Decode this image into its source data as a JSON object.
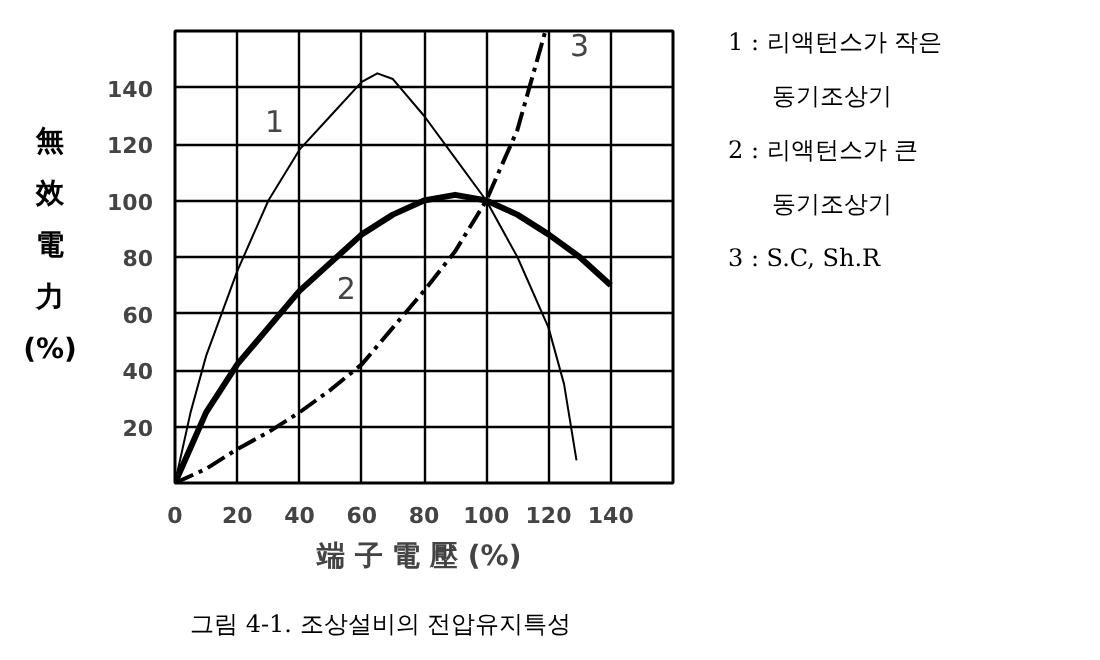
{
  "chart_data": {
    "type": "line",
    "xlabel": "端 子 電 壓  (%)",
    "ylabel": "無效電力(%)",
    "xlim": [
      0,
      160
    ],
    "ylim": [
      0,
      160
    ],
    "xticks": [
      0,
      20,
      40,
      60,
      80,
      100,
      120,
      140
    ],
    "yticks": [
      20,
      40,
      60,
      80,
      100,
      120,
      140
    ],
    "grid": true,
    "marker": "none",
    "series": [
      {
        "color": "#000000",
        "line_style": "solid",
        "x": [
          0,
          5,
          10,
          20,
          30,
          40,
          50,
          60,
          65,
          70,
          80,
          90,
          100,
          110,
          120,
          125,
          129
        ],
        "values": [
          0,
          25,
          45,
          75,
          100,
          118,
          130,
          142,
          145,
          143,
          130,
          115,
          100,
          80,
          55,
          35,
          8
        ]
      },
      {
        "color": "#000000",
        "line_style": "solid",
        "x": [
          0,
          10,
          20,
          30,
          40,
          50,
          60,
          70,
          80,
          90,
          100,
          110,
          120,
          130,
          140
        ],
        "values": [
          0,
          25,
          42,
          55,
          68,
          78,
          88,
          95,
          100,
          102,
          100,
          95,
          88,
          80,
          70
        ]
      },
      {
        "color": "#000000",
        "line_style": "dashed",
        "x": [
          0,
          10,
          20,
          30,
          40,
          50,
          60,
          70,
          80,
          90,
          100,
          110,
          119
        ],
        "values": [
          0,
          5,
          12,
          18,
          25,
          33,
          42,
          55,
          68,
          82,
          100,
          125,
          160
        ]
      }
    ],
    "annotations": [
      "1",
      "2",
      "3",
      "1 : 리액턴스가 작은 동기조상기",
      "2 : 리액턴스가 큰 동기조상기",
      "3 : S.C, Sh.R",
      "그림 4-1. 조상설비의 전압유지특성"
    ]
  }
}
